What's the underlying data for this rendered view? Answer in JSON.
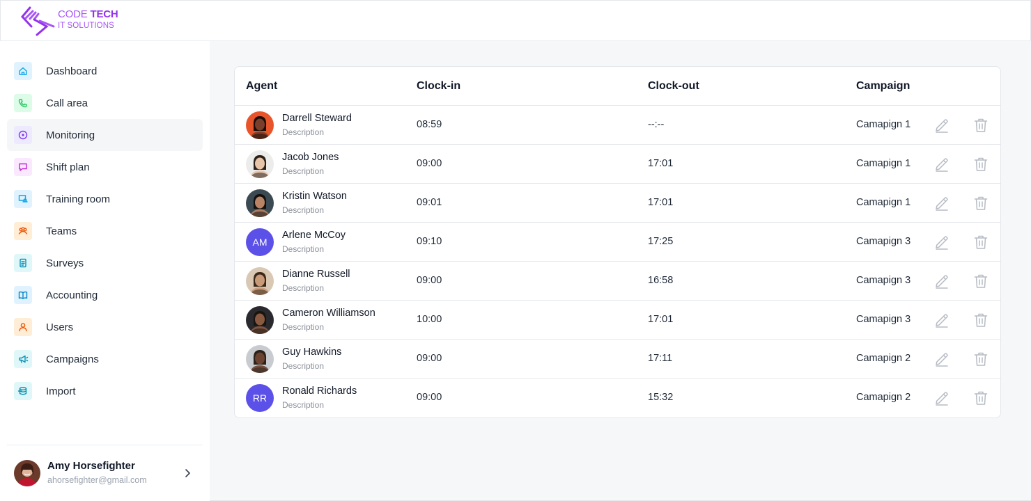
{
  "brand": {
    "line1_a": "CODE ",
    "line1_b": "TECH",
    "line2": "IT SOLUTIONS",
    "color": "#a855f7"
  },
  "nav": [
    {
      "label": "Dashboard",
      "icon": "home-icon",
      "bg": "#e0f2fe",
      "fg": "#0ea5e9"
    },
    {
      "label": "Call area",
      "icon": "phone-icon",
      "bg": "#dcfce7",
      "fg": "#22c55e"
    },
    {
      "label": "Monitoring",
      "icon": "monitoring-icon",
      "bg": "#ede9fe",
      "fg": "#7c3aed",
      "active": true
    },
    {
      "label": "Shift plan",
      "icon": "chat-icon",
      "bg": "#fae8ff",
      "fg": "#c026d3"
    },
    {
      "label": "Training room",
      "icon": "training-icon",
      "bg": "#e0f2fe",
      "fg": "#0ea5e9"
    },
    {
      "label": "Teams",
      "icon": "teams-icon",
      "bg": "#ffedd5",
      "fg": "#ea580c"
    },
    {
      "label": "Surveys",
      "icon": "survey-icon",
      "bg": "#e0f7fa",
      "fg": "#0891b2"
    },
    {
      "label": "Accounting",
      "icon": "book-icon",
      "bg": "#e0f2fe",
      "fg": "#0284c7"
    },
    {
      "label": "Users",
      "icon": "user-icon",
      "bg": "#ffedd5",
      "fg": "#ea580c"
    },
    {
      "label": "Campaigns",
      "icon": "megaphone-icon",
      "bg": "#e0f7fa",
      "fg": "#0891b2"
    },
    {
      "label": "Import",
      "icon": "database-icon",
      "bg": "#e0f7fa",
      "fg": "#0891b2"
    }
  ],
  "user": {
    "name": "Amy Horsefighter",
    "email": "ahorsefighter@gmail.com"
  },
  "table": {
    "headers": {
      "agent": "Agent",
      "clock_in": "Clock-in",
      "clock_out": "Clock-out",
      "campaign": "Campaign"
    },
    "rows": [
      {
        "name": "Darrell Steward",
        "desc": "Description",
        "clock_in": "08:59",
        "clock_out": "--:--",
        "campaign": "Camapign 1",
        "avatar": "photo",
        "skin": "#7a3e2a",
        "bg": "#e8552b",
        "hair": "#1a0d08"
      },
      {
        "name": "Jacob Jones",
        "desc": "Description",
        "clock_in": "09:00",
        "clock_out": "17:01",
        "campaign": "Camapign 1",
        "avatar": "photo",
        "skin": "#e8c4a8",
        "bg": "#ececea",
        "hair": "#2a2018"
      },
      {
        "name": "Kristin Watson",
        "desc": "Description",
        "clock_in": "09:01",
        "clock_out": "17:01",
        "campaign": "Camapign 1",
        "avatar": "photo",
        "skin": "#b98466",
        "bg": "#3b4a52",
        "hair": "#14100e"
      },
      {
        "name": "Arlene McCoy",
        "desc": "Description",
        "clock_in": "09:10",
        "clock_out": "17:25",
        "campaign": "Camapign 3",
        "avatar": "initials",
        "initials": "AM",
        "color": "#5b50e8"
      },
      {
        "name": "Dianne Russell",
        "desc": "Description",
        "clock_in": "09:00",
        "clock_out": "16:58",
        "campaign": "Camapign 3",
        "avatar": "photo",
        "skin": "#c99a78",
        "bg": "#d9c8b4",
        "hair": "#3a2818"
      },
      {
        "name": "Cameron Williamson",
        "desc": "Description",
        "clock_in": "10:00",
        "clock_out": "17:01",
        "campaign": "Camapign 3",
        "avatar": "photo",
        "skin": "#8a5a40",
        "bg": "#2a2a2e",
        "hair": "#1a1410"
      },
      {
        "name": "Guy Hawkins",
        "desc": "Description",
        "clock_in": "09:00",
        "clock_out": "17:11",
        "campaign": "Camapign 2",
        "avatar": "photo",
        "skin": "#6b4330",
        "bg": "#c8ccd0",
        "hair": "#2b211b"
      },
      {
        "name": "Ronald Richards",
        "desc": "Description",
        "clock_in": "09:00",
        "clock_out": "15:32",
        "campaign": "Camapign 2",
        "avatar": "initials",
        "initials": "RR",
        "color": "#5b50e8"
      }
    ]
  }
}
